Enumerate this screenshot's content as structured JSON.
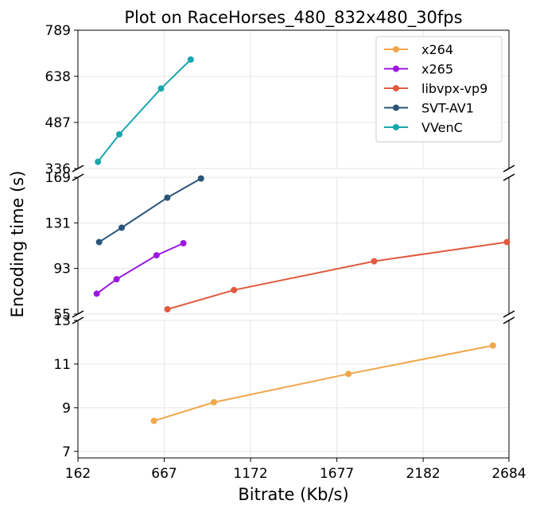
{
  "chart_data": {
    "type": "line",
    "title": "Plot on RaceHorses_480_832x480_30fps",
    "xlabel": "Bitrate (Kb/s)",
    "ylabel": "Encoding time (s)",
    "xlim": [
      162,
      2684
    ],
    "xticks": [
      "162",
      "667",
      "1172",
      "1677",
      "2182",
      "2684"
    ],
    "xtick_values": [
      162,
      667,
      1172,
      1677,
      2182,
      2684
    ],
    "grid": true,
    "legend_position": "top-right",
    "panels": [
      {
        "ylim": [
          336,
          789
        ],
        "yticks": [
          "336",
          "487",
          "638",
          "789"
        ],
        "ytick_values": [
          336,
          487,
          638,
          789
        ]
      },
      {
        "ylim": [
          55,
          169
        ],
        "yticks": [
          "55",
          "93",
          "131",
          "169"
        ],
        "ytick_values": [
          55,
          93,
          131,
          169
        ]
      },
      {
        "ylim": [
          6.7,
          13
        ],
        "yticks": [
          "7",
          "9",
          "11",
          "13"
        ],
        "ytick_values": [
          7,
          9,
          11,
          13
        ]
      }
    ],
    "series": [
      {
        "name": "x264",
        "color": "#f0a64a",
        "panel": 2,
        "x": [
          607,
          958,
          1745,
          2590
        ],
        "y": [
          8.4,
          9.25,
          10.55,
          11.85
        ]
      },
      {
        "name": "x265",
        "color": "#9b16e0",
        "panel": 1,
        "x": [
          272,
          388,
          622,
          779
        ],
        "y": [
          72,
          84,
          104,
          114
        ]
      },
      {
        "name": "libvpx-vp9",
        "color": "#e05a3e",
        "panel": 1,
        "x": [
          686,
          1075,
          1895,
          2672
        ],
        "y": [
          59,
          75,
          99,
          115
        ]
      },
      {
        "name": "SVT-AV1",
        "color": "#2a5579",
        "panel": 1,
        "x": [
          286,
          418,
          685,
          882
        ],
        "y": [
          115,
          127,
          152,
          168
        ]
      },
      {
        "name": "VVenC",
        "color": "#1aa6ad",
        "panel": 0,
        "x": [
          279,
          404,
          648,
          822
        ],
        "y": [
          358,
          448,
          598,
          693
        ]
      }
    ]
  }
}
